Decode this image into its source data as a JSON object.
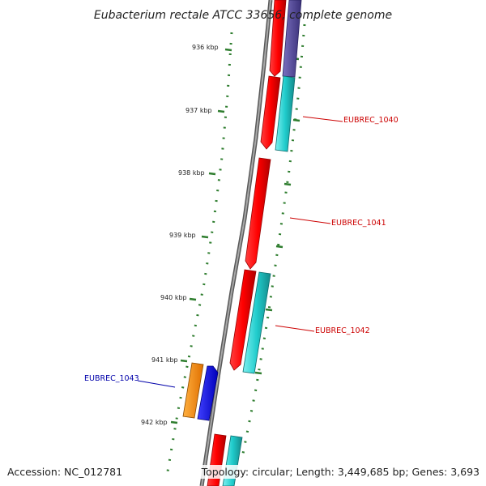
{
  "title": "Eubacterium rectale ATCC 33656, complete genome",
  "footer": {
    "accession": "Accession: NC_012781",
    "topology": "Topology: circular; Length: 3,449,685 bp; Genes: 3,693"
  },
  "kbp_ticks": [
    "936 kbp",
    "937 kbp",
    "938 kbp",
    "939 kbp",
    "940 kbp",
    "941 kbp",
    "942 kbp"
  ],
  "gene_labels": [
    {
      "text": "EUBREC_1040",
      "color": "#cc0000"
    },
    {
      "text": "EUBREC_1041",
      "color": "#cc0000"
    },
    {
      "text": "EUBREC_1042",
      "color": "#cc0000"
    },
    {
      "text": "EUBREC_1043",
      "color": "#0000aa"
    }
  ],
  "colors": {
    "backbone": "#8a8a8a",
    "cds_forward": "#ff0000",
    "cds_reverse": "#0000ee",
    "gene_forward": "#20cccc",
    "gene_reverse": "#ff8800",
    "other_feature": "#4a3f8f",
    "ruler": "#2e7d2e"
  }
}
